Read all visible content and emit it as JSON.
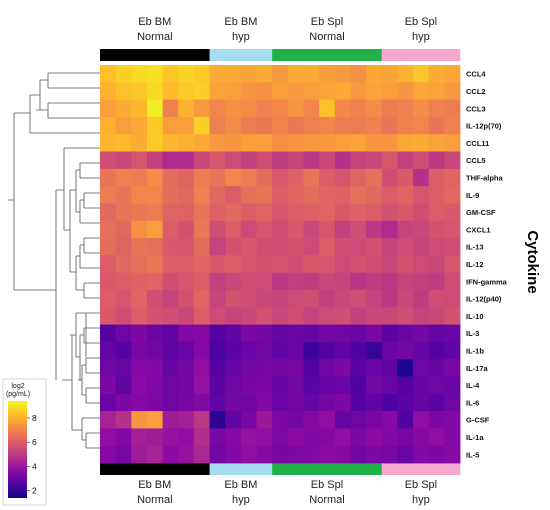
{
  "chart_data": {
    "type": "heatmap",
    "ylabel": "Cytokine",
    "colorbar": {
      "title_line1": "log2",
      "title_line2": "(pg/mL)",
      "ticks": [
        2,
        4,
        6,
        8
      ],
      "range": [
        1.4,
        9.4
      ],
      "colors": [
        "#0d0887",
        "#5302a3",
        "#8b0aa5",
        "#b83289",
        "#db5c68",
        "#f48849",
        "#febd2a",
        "#f0f921"
      ]
    },
    "groups": [
      {
        "line1": "Eb BM",
        "line2": "Normal",
        "n": 7,
        "color": "#000000"
      },
      {
        "line1": "Eb BM",
        "line2": "hyp",
        "n": 4,
        "color": "#a6dcef"
      },
      {
        "line1": "Eb Spl",
        "line2": "Normal",
        "n": 7,
        "color": "#22b04b"
      },
      {
        "line1": "Eb Spl",
        "line2": "hyp",
        "n": 5,
        "color": "#f7a8cf"
      }
    ],
    "rows": [
      "CCL4",
      "CCL2",
      "CCL3",
      "IL-12p(70)",
      "CCL11",
      "CCL5",
      "THF-alpha",
      "IL-9",
      "GM-CSF",
      "CXCL1",
      "IL-13",
      "IL-12",
      "IFN-gamma",
      "IL-12(p40)",
      "IL-10",
      "IL-3",
      "IL-1b",
      "IL-17a",
      "IL-4",
      "IL-6",
      "G-CSF",
      "IL-1a",
      "IL-5"
    ],
    "values": [
      [
        8.3,
        8.6,
        8.8,
        8.9,
        8.4,
        8.7,
        8.5,
        7.9,
        7.8,
        7.7,
        7.9,
        7.5,
        7.9,
        7.8,
        7.6,
        7.5,
        7.3,
        7.8,
        7.7,
        8.0,
        8.4,
        7.9,
        7.8
      ],
      [
        8.0,
        8.3,
        8.4,
        8.8,
        8.2,
        8.5,
        8.6,
        7.7,
        7.6,
        7.4,
        7.3,
        7.6,
        7.5,
        7.6,
        7.7,
        7.8,
        7.5,
        7.7,
        7.6,
        7.4,
        7.8,
        7.7,
        7.5
      ],
      [
        7.6,
        7.9,
        8.1,
        9.2,
        6.9,
        8.0,
        7.5,
        7.0,
        7.3,
        7.2,
        6.9,
        7.1,
        7.4,
        7.0,
        8.3,
        7.1,
        6.9,
        7.2,
        6.8,
        6.9,
        7.2,
        6.9,
        6.8
      ],
      [
        8.0,
        7.6,
        7.8,
        8.5,
        7.6,
        7.6,
        8.6,
        6.9,
        7.2,
        6.8,
        6.7,
        7.0,
        6.7,
        6.9,
        7.0,
        6.8,
        6.8,
        6.9,
        6.6,
        6.9,
        7.0,
        6.6,
        6.9
      ],
      [
        8.1,
        8.2,
        7.9,
        8.5,
        8.1,
        8.0,
        7.8,
        7.5,
        7.4,
        7.6,
        7.6,
        7.3,
        7.4,
        7.5,
        7.5,
        7.6,
        7.7,
        7.4,
        7.4,
        7.8,
        7.9,
        7.7,
        7.6
      ],
      [
        5.6,
        5.4,
        5.8,
        5.2,
        4.6,
        4.6,
        5.4,
        5.8,
        5.5,
        5.2,
        5.6,
        5.1,
        5.3,
        5.0,
        5.4,
        4.8,
        5.3,
        5.4,
        5.8,
        5.2,
        5.6,
        5.0,
        5.4
      ],
      [
        6.6,
        6.9,
        6.8,
        7.2,
        6.4,
        6.2,
        6.8,
        6.6,
        7.0,
        6.8,
        6.4,
        5.9,
        6.1,
        6.6,
        6.0,
        5.8,
        6.2,
        6.5,
        5.6,
        5.9,
        4.8,
        6.0,
        6.2
      ],
      [
        6.8,
        6.6,
        7.0,
        7.0,
        6.4,
        6.3,
        6.9,
        6.3,
        6.0,
        6.5,
        6.6,
        6.0,
        6.2,
        6.4,
        6.2,
        6.1,
        6.5,
        6.3,
        6.0,
        6.2,
        5.8,
        6.0,
        6.3
      ],
      [
        6.3,
        6.6,
        6.7,
        6.8,
        6.2,
        6.1,
        6.6,
        6.1,
        6.3,
        6.0,
        6.2,
        5.8,
        6.0,
        6.1,
        6.2,
        5.9,
        6.1,
        6.0,
        5.7,
        5.9,
        5.6,
        6.0,
        5.9
      ],
      [
        6.5,
        6.3,
        7.3,
        7.6,
        6.0,
        5.7,
        6.7,
        5.6,
        6.0,
        5.5,
        5.8,
        5.6,
        5.9,
        5.4,
        5.8,
        5.2,
        5.6,
        5.0,
        4.6,
        5.3,
        5.4,
        5.7,
        5.8
      ],
      [
        6.4,
        6.2,
        6.6,
        6.5,
        5.9,
        5.8,
        6.4,
        5.3,
        5.7,
        5.9,
        5.6,
        5.6,
        5.7,
        5.5,
        6.0,
        5.6,
        5.5,
        5.7,
        5.3,
        5.5,
        5.3,
        5.5,
        5.6
      ],
      [
        6.0,
        6.3,
        6.5,
        6.7,
        6.0,
        6.0,
        6.2,
        5.9,
        6.0,
        5.8,
        5.7,
        5.8,
        5.6,
        5.9,
        5.8,
        5.5,
        5.7,
        5.6,
        5.4,
        5.7,
        5.5,
        5.4,
        5.8
      ],
      [
        5.9,
        6.0,
        6.1,
        6.2,
        5.6,
        5.8,
        6.0,
        5.2,
        5.4,
        5.6,
        5.5,
        5.0,
        5.2,
        5.1,
        5.4,
        5.3,
        4.9,
        5.1,
        5.0,
        5.3,
        5.2,
        5.1,
        5.6
      ],
      [
        6.0,
        5.8,
        6.2,
        5.6,
        5.3,
        5.7,
        6.2,
        5.3,
        5.7,
        5.6,
        5.4,
        5.3,
        5.5,
        5.6,
        5.2,
        5.4,
        5.6,
        5.3,
        5.0,
        5.4,
        5.1,
        5.6,
        5.5
      ],
      [
        5.9,
        5.6,
        6.0,
        5.7,
        5.6,
        5.4,
        6.0,
        5.5,
        5.3,
        5.4,
        5.7,
        5.4,
        5.6,
        5.3,
        5.5,
        5.6,
        5.2,
        5.4,
        5.4,
        5.6,
        5.3,
        5.4,
        5.7
      ],
      [
        2.6,
        3.1,
        3.4,
        3.0,
        2.8,
        3.5,
        3.6,
        2.6,
        2.8,
        3.4,
        3.2,
        2.9,
        3.0,
        2.9,
        3.2,
        3.1,
        3.0,
        3.3,
        2.7,
        3.0,
        3.2,
        2.9,
        3.0
      ],
      [
        2.9,
        2.6,
        3.3,
        3.2,
        2.8,
        3.0,
        3.6,
        2.4,
        2.7,
        3.0,
        3.1,
        2.8,
        3.0,
        2.2,
        2.6,
        2.8,
        2.5,
        2.1,
        3.0,
        3.2,
        2.9,
        2.6,
        2.8
      ],
      [
        3.1,
        3.0,
        3.6,
        3.5,
        2.9,
        3.2,
        3.8,
        2.6,
        2.9,
        3.2,
        3.3,
        3.2,
        3.3,
        2.6,
        3.1,
        3.4,
        2.7,
        3.0,
        2.8,
        1.7,
        3.1,
        2.9,
        3.3
      ],
      [
        3.4,
        2.8,
        3.7,
        3.5,
        3.1,
        3.2,
        3.9,
        2.7,
        3.1,
        3.3,
        3.4,
        2.9,
        3.2,
        2.7,
        2.9,
        3.0,
        2.5,
        3.2,
        3.0,
        2.6,
        2.9,
        3.1,
        3.0
      ],
      [
        3.0,
        3.4,
        3.6,
        3.4,
        3.1,
        3.3,
        3.5,
        2.8,
        3.2,
        3.1,
        3.5,
        3.0,
        3.1,
        2.9,
        3.2,
        3.4,
        2.6,
        2.8,
        2.5,
        2.7,
        2.9,
        2.7,
        3.1
      ],
      [
        4.4,
        4.8,
        7.4,
        7.6,
        4.2,
        4.3,
        5.0,
        1.9,
        2.8,
        3.3,
        4.1,
        3.4,
        3.2,
        3.6,
        3.8,
        2.9,
        3.1,
        3.3,
        3.6,
        2.5,
        3.8,
        3.4,
        3.5
      ],
      [
        3.8,
        3.5,
        4.3,
        4.2,
        3.9,
        3.8,
        4.7,
        3.3,
        3.6,
        3.9,
        3.8,
        3.4,
        3.7,
        3.5,
        3.6,
        3.8,
        3.4,
        3.7,
        3.5,
        3.3,
        3.6,
        3.8,
        3.5
      ],
      [
        3.6,
        3.3,
        4.2,
        4.4,
        3.7,
        3.9,
        4.5,
        3.2,
        3.5,
        3.8,
        3.6,
        3.3,
        3.4,
        3.5,
        3.7,
        3.6,
        3.2,
        3.4,
        3.3,
        3.0,
        3.5,
        3.4,
        3.6
      ]
    ]
  }
}
